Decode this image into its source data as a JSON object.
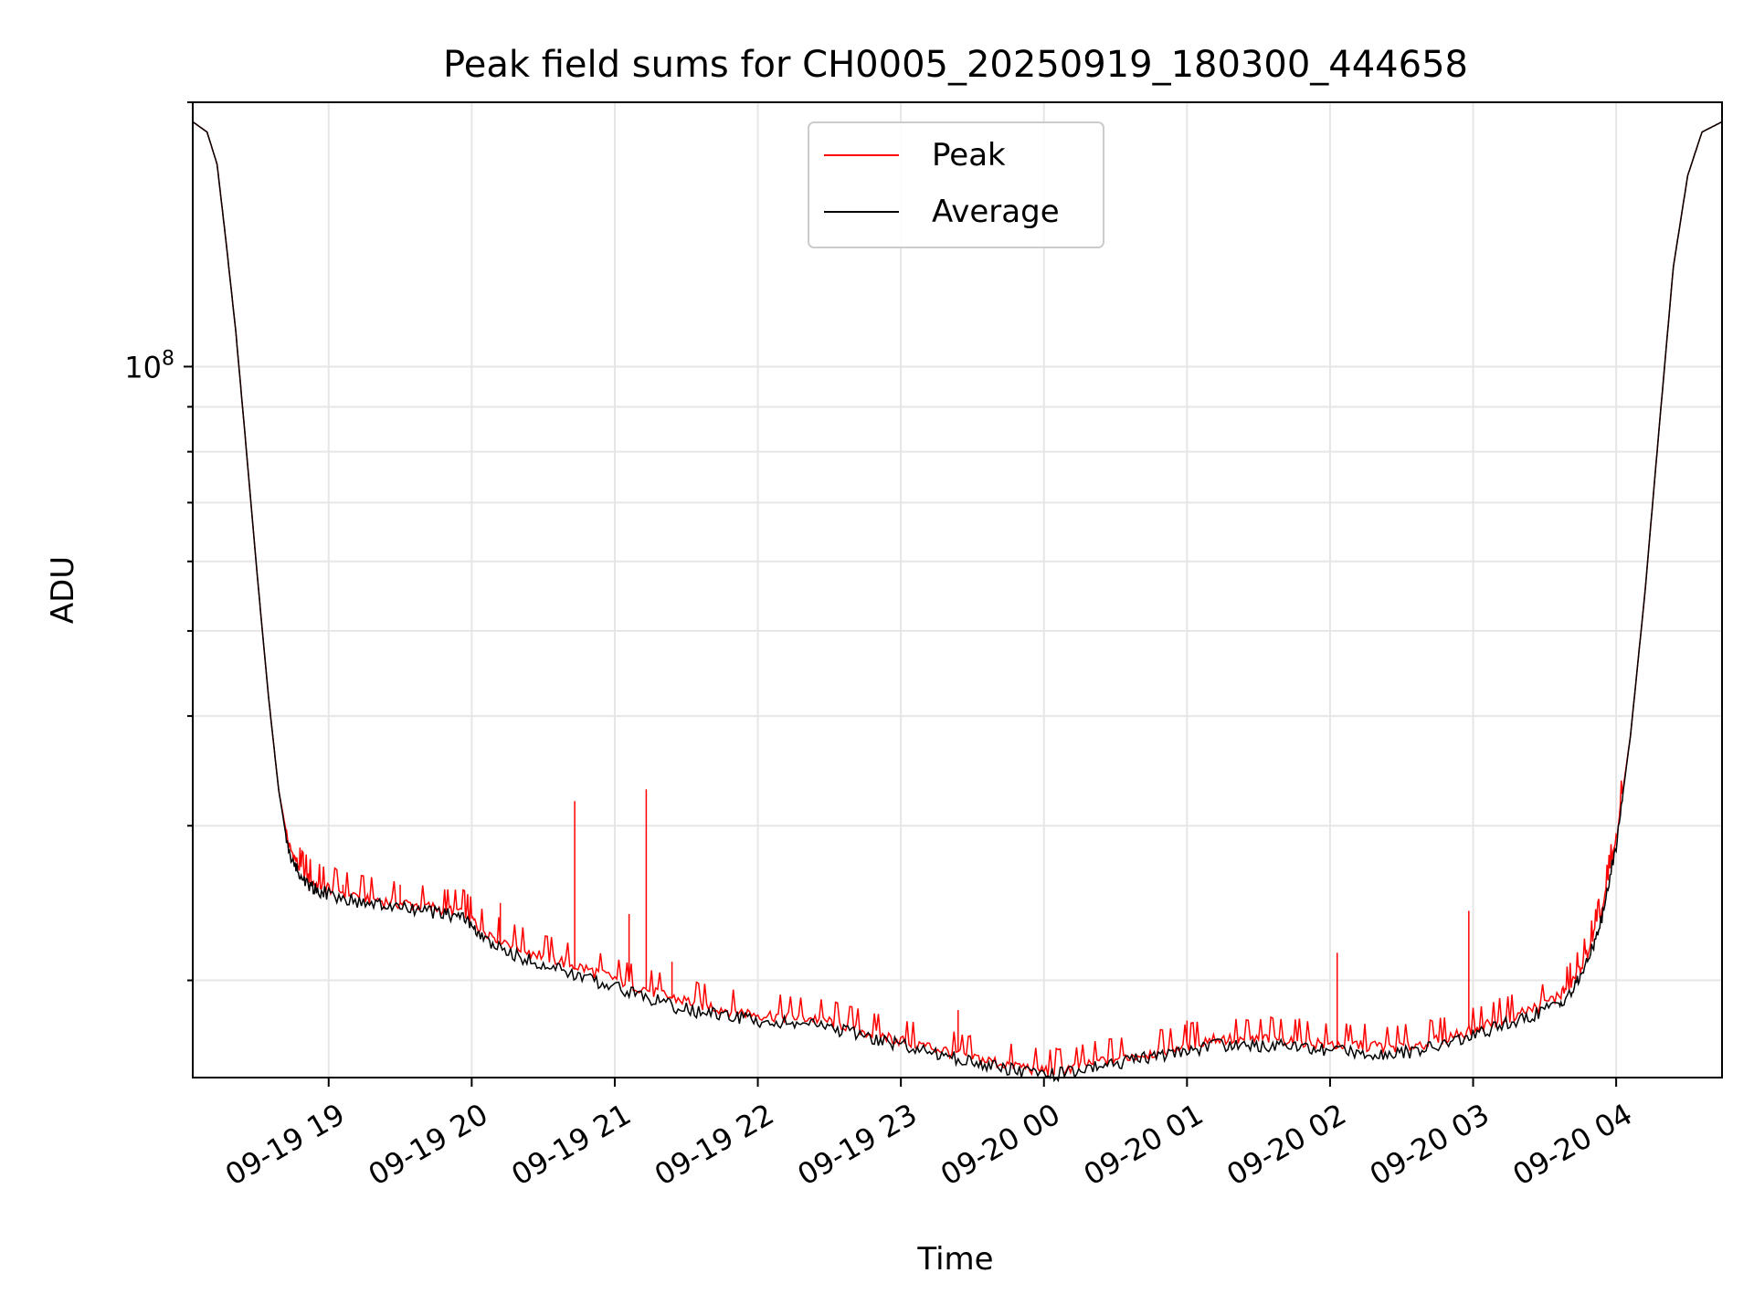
{
  "chart_data": {
    "type": "line",
    "title": "Peak field sums for CH0005_20250919_180300_444658",
    "xlabel": "Time",
    "ylabel": "ADU",
    "yscale": "log",
    "ylim": [
      15500000,
      200000000
    ],
    "xlim": [
      -0.95,
      9.74
    ],
    "x_ticks": [
      {
        "x": 0,
        "label": "09-19 19"
      },
      {
        "x": 1,
        "label": "09-19 20"
      },
      {
        "x": 2,
        "label": "09-19 21"
      },
      {
        "x": 3,
        "label": "09-19 22"
      },
      {
        "x": 4,
        "label": "09-19 23"
      },
      {
        "x": 5,
        "label": "09-20 00"
      },
      {
        "x": 6,
        "label": "09-20 01"
      },
      {
        "x": 7,
        "label": "09-20 02"
      },
      {
        "x": 8,
        "label": "09-20 03"
      },
      {
        "x": 9,
        "label": "09-20 04"
      }
    ],
    "y_major_ticks": [
      {
        "value": 100000000,
        "base": "10",
        "exp": "8"
      }
    ],
    "y_minor_ticks": [
      20000000,
      30000000,
      40000000,
      50000000,
      60000000,
      70000000,
      80000000,
      90000000,
      200000000
    ],
    "grid": true,
    "legend": {
      "placement": "top-center",
      "entries": [
        "Peak",
        "Average"
      ]
    },
    "series": [
      {
        "name": "Peak",
        "color": "#ff0000",
        "points": [
          [
            -0.95,
            190000000
          ],
          [
            -0.85,
            185000000
          ],
          [
            -0.78,
            170000000
          ],
          [
            -0.72,
            140000000
          ],
          [
            -0.65,
            110000000
          ],
          [
            -0.58,
            82000000
          ],
          [
            -0.5,
            58000000
          ],
          [
            -0.42,
            42000000
          ],
          [
            -0.35,
            33000000
          ],
          [
            -0.28,
            28500000
          ],
          [
            -0.2,
            26800000
          ],
          [
            -0.1,
            25800000
          ],
          [
            0,
            25500000
          ],
          [
            0.2,
            25000000
          ],
          [
            0.4,
            24600000
          ],
          [
            0.6,
            24400000
          ],
          [
            0.8,
            24100000
          ],
          [
            0.95,
            24000000
          ],
          [
            1.05,
            23000000
          ],
          [
            1.2,
            22300000
          ],
          [
            1.4,
            21600000
          ],
          [
            1.6,
            21100000
          ],
          [
            1.8,
            20600000
          ],
          [
            2.0,
            20100000
          ],
          [
            2.2,
            19600000
          ],
          [
            2.4,
            19100000
          ],
          [
            2.6,
            18800000
          ],
          [
            2.8,
            18500000
          ],
          [
            3.0,
            18300000
          ],
          [
            3.2,
            18200000
          ],
          [
            3.4,
            18100000
          ],
          [
            3.6,
            17800000
          ],
          [
            3.8,
            17400000
          ],
          [
            4.0,
            17100000
          ],
          [
            4.2,
            16800000
          ],
          [
            4.4,
            16500000
          ],
          [
            4.6,
            16200000
          ],
          [
            4.8,
            16000000
          ],
          [
            5.0,
            15800000
          ],
          [
            5.2,
            15900000
          ],
          [
            5.4,
            16200000
          ],
          [
            5.6,
            16400000
          ],
          [
            5.8,
            16600000
          ],
          [
            6.0,
            16900000
          ],
          [
            6.2,
            17200000
          ],
          [
            6.4,
            17100000
          ],
          [
            6.6,
            17200000
          ],
          [
            6.8,
            17100000
          ],
          [
            7.0,
            16900000
          ],
          [
            7.2,
            16900000
          ],
          [
            7.4,
            16800000
          ],
          [
            7.6,
            16900000
          ],
          [
            7.8,
            17200000
          ],
          [
            8.0,
            17600000
          ],
          [
            8.2,
            18100000
          ],
          [
            8.4,
            18500000
          ],
          [
            8.6,
            19200000
          ],
          [
            8.7,
            20000000
          ],
          [
            8.8,
            21500000
          ],
          [
            8.9,
            24000000
          ],
          [
            9.0,
            29000000
          ],
          [
            9.1,
            38000000
          ],
          [
            9.2,
            55000000
          ],
          [
            9.3,
            85000000
          ],
          [
            9.4,
            130000000
          ],
          [
            9.5,
            165000000
          ],
          [
            9.6,
            185000000
          ],
          [
            9.74,
            190000000
          ]
        ],
        "spikes": [
          [
            0.1,
            25700000
          ],
          [
            0.5,
            25700000
          ],
          [
            1.2,
            24500000
          ],
          [
            1.72,
            32000000
          ],
          [
            2.1,
            23800000
          ],
          [
            2.22,
            33000000
          ],
          [
            2.4,
            21000000
          ],
          [
            4.4,
            18500000
          ],
          [
            6.0,
            18000000
          ],
          [
            7.05,
            21500000
          ],
          [
            7.97,
            24000000
          ]
        ]
      },
      {
        "name": "Average",
        "color": "#000000",
        "points": [
          [
            -0.95,
            190000000
          ],
          [
            -0.85,
            185000000
          ],
          [
            -0.78,
            170000000
          ],
          [
            -0.72,
            140000000
          ],
          [
            -0.65,
            110000000
          ],
          [
            -0.58,
            82000000
          ],
          [
            -0.5,
            58000000
          ],
          [
            -0.42,
            42000000
          ],
          [
            -0.35,
            33000000
          ],
          [
            -0.28,
            28000000
          ],
          [
            -0.2,
            26300000
          ],
          [
            -0.1,
            25400000
          ],
          [
            0,
            25100000
          ],
          [
            0.2,
            24600000
          ],
          [
            0.4,
            24300000
          ],
          [
            0.6,
            24100000
          ],
          [
            0.8,
            23800000
          ],
          [
            0.95,
            23600000
          ],
          [
            1.05,
            22500000
          ],
          [
            1.2,
            21700000
          ],
          [
            1.4,
            21100000
          ],
          [
            1.6,
            20600000
          ],
          [
            1.8,
            20100000
          ],
          [
            2.0,
            19700000
          ],
          [
            2.2,
            19200000
          ],
          [
            2.4,
            18700000
          ],
          [
            2.6,
            18400000
          ],
          [
            2.8,
            18200000
          ],
          [
            3.0,
            18000000
          ],
          [
            3.2,
            17900000
          ],
          [
            3.4,
            17800000
          ],
          [
            3.6,
            17500000
          ],
          [
            3.8,
            17200000
          ],
          [
            4.0,
            16900000
          ],
          [
            4.2,
            16600000
          ],
          [
            4.4,
            16300000
          ],
          [
            4.6,
            16000000
          ],
          [
            4.8,
            15800000
          ],
          [
            5.0,
            15600000
          ],
          [
            5.2,
            15700000
          ],
          [
            5.4,
            16000000
          ],
          [
            5.6,
            16200000
          ],
          [
            5.8,
            16400000
          ],
          [
            6.0,
            16600000
          ],
          [
            6.2,
            16900000
          ],
          [
            6.4,
            16800000
          ],
          [
            6.6,
            16900000
          ],
          [
            6.8,
            16800000
          ],
          [
            7.0,
            16600000
          ],
          [
            7.2,
            16600000
          ],
          [
            7.4,
            16500000
          ],
          [
            7.6,
            16600000
          ],
          [
            7.8,
            16900000
          ],
          [
            8.0,
            17300000
          ],
          [
            8.2,
            17800000
          ],
          [
            8.4,
            18200000
          ],
          [
            8.6,
            18800000
          ],
          [
            8.7,
            19500000
          ],
          [
            8.8,
            21000000
          ],
          [
            8.9,
            23500000
          ],
          [
            9.0,
            28500000
          ],
          [
            9.1,
            38000000
          ],
          [
            9.2,
            55000000
          ],
          [
            9.3,
            85000000
          ],
          [
            9.4,
            130000000
          ],
          [
            9.5,
            165000000
          ],
          [
            9.6,
            185000000
          ],
          [
            9.74,
            190000000
          ]
        ]
      }
    ]
  }
}
